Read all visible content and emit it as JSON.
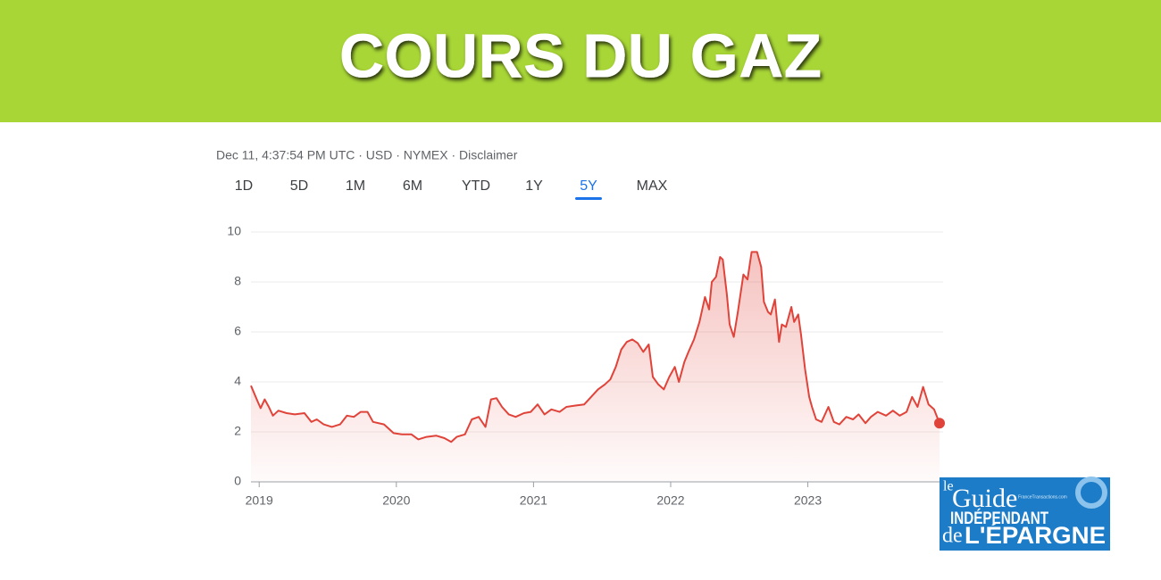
{
  "header": {
    "title": "COURS DU GAZ"
  },
  "meta": "Dec 11, 4:37:54 PM UTC · USD · NYMEX · Disclaimer",
  "tabs": {
    "items": [
      "1D",
      "5D",
      "1M",
      "6M",
      "YTD",
      "1Y",
      "5Y",
      "MAX"
    ],
    "selected_index": 6
  },
  "logo": {
    "line1": "le",
    "line2": "Guide",
    "line3": "INDÉPENDANT",
    "line4": "de",
    "line5": "L'ÉPARGNE",
    "site": "FranceTransactions.com"
  },
  "chart_data": {
    "type": "line",
    "x": [
      2018.94,
      2018.99,
      2019.01,
      2019.04,
      2019.07,
      2019.1,
      2019.14,
      2019.2,
      2019.26,
      2019.33,
      2019.38,
      2019.42,
      2019.47,
      2019.53,
      2019.59,
      2019.64,
      2019.69,
      2019.74,
      2019.79,
      2019.83,
      2019.91,
      2019.98,
      2020.04,
      2020.11,
      2020.16,
      2020.22,
      2020.29,
      2020.35,
      2020.4,
      2020.44,
      2020.5,
      2020.55,
      2020.6,
      2020.65,
      2020.69,
      2020.73,
      2020.77,
      2020.82,
      2020.87,
      2020.93,
      2020.98,
      2021.03,
      2021.08,
      2021.13,
      2021.19,
      2021.24,
      2021.3,
      2021.37,
      2021.42,
      2021.47,
      2021.52,
      2021.56,
      2021.6,
      2021.64,
      2021.68,
      2021.72,
      2021.76,
      2021.8,
      2021.84,
      2021.87,
      2021.91,
      2021.95,
      2021.99,
      2022.03,
      2022.06,
      2022.1,
      2022.13,
      2022.17,
      2022.21,
      2022.25,
      2022.28,
      2022.3,
      2022.33,
      2022.36,
      2022.38,
      2022.41,
      2022.43,
      2022.46,
      2022.49,
      2022.53,
      2022.56,
      2022.59,
      2022.63,
      2022.66,
      2022.68,
      2022.71,
      2022.73,
      2022.76,
      2022.79,
      2022.81,
      2022.84,
      2022.88,
      2022.9,
      2022.93,
      2022.95,
      2022.98,
      2023.01,
      2023.03,
      2023.06,
      2023.1,
      2023.15,
      2023.19,
      2023.23,
      2023.28,
      2023.33,
      2023.37,
      2023.42,
      2023.46,
      2023.51,
      2023.57,
      2023.62,
      2023.67,
      2023.72,
      2023.76,
      2023.8,
      2023.84,
      2023.88,
      2023.92,
      2023.96
    ],
    "series": [
      {
        "color": "#e0433a",
        "values": [
          3.85,
          3.2,
          2.95,
          3.3,
          3.0,
          2.65,
          2.85,
          2.75,
          2.7,
          2.75,
          2.4,
          2.5,
          2.3,
          2.2,
          2.3,
          2.65,
          2.6,
          2.8,
          2.8,
          2.4,
          2.3,
          1.95,
          1.9,
          1.9,
          1.7,
          1.8,
          1.85,
          1.75,
          1.6,
          1.8,
          1.9,
          2.5,
          2.6,
          2.2,
          3.3,
          3.35,
          3.0,
          2.7,
          2.6,
          2.75,
          2.8,
          3.1,
          2.7,
          2.9,
          2.8,
          3.0,
          3.05,
          3.1,
          3.4,
          3.7,
          3.9,
          4.1,
          4.6,
          5.3,
          5.6,
          5.7,
          5.55,
          5.2,
          5.5,
          4.2,
          3.9,
          3.7,
          4.2,
          4.6,
          4.0,
          4.8,
          5.2,
          5.7,
          6.4,
          7.4,
          6.9,
          8.0,
          8.2,
          9.0,
          8.9,
          7.5,
          6.3,
          5.8,
          6.8,
          8.3,
          8.1,
          9.2,
          9.2,
          8.6,
          7.2,
          6.8,
          6.7,
          7.3,
          5.6,
          6.3,
          6.2,
          7.0,
          6.4,
          6.7,
          5.9,
          4.5,
          3.4,
          3.0,
          2.5,
          2.4,
          3.0,
          2.4,
          2.3,
          2.6,
          2.5,
          2.7,
          2.35,
          2.6,
          2.8,
          2.65,
          2.85,
          2.65,
          2.8,
          3.4,
          3.0,
          3.8,
          3.1,
          2.9,
          2.35
        ]
      }
    ],
    "xlim": [
      2018.94,
      2023.96
    ],
    "xticks": [
      2019,
      2020,
      2021,
      2022,
      2023
    ],
    "ylim": [
      0,
      10
    ],
    "yticks": [
      0,
      2,
      4,
      6,
      8,
      10
    ],
    "grid": true
  }
}
